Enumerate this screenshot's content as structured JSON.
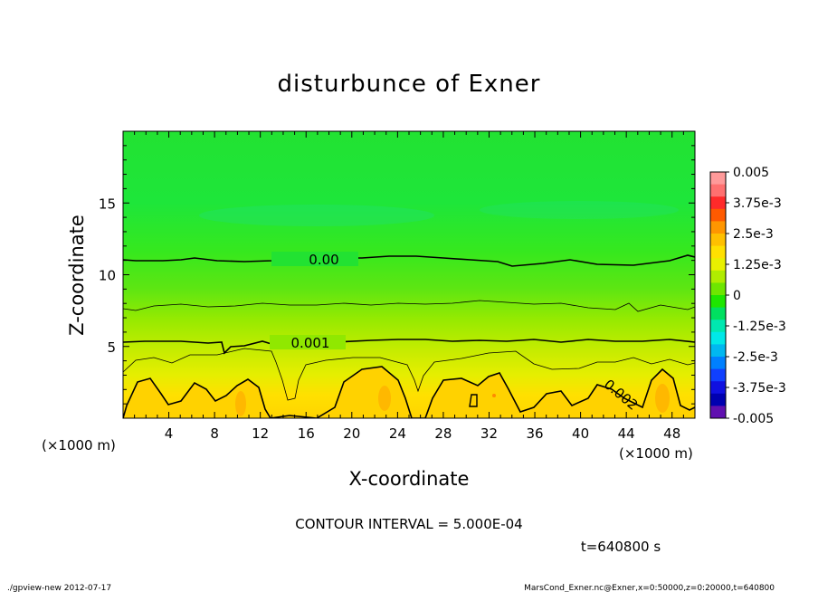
{
  "chart_data": {
    "type": "heatmap",
    "title": "disturbunce of Exner",
    "xlabel": "X-coordinate",
    "ylabel": "Z-coordinate",
    "x_unit_left": "(×1000 m)",
    "x_unit_right": "(×1000 m)",
    "xlim": [
      0,
      50
    ],
    "ylim": [
      0,
      20
    ],
    "x_ticks": [
      4,
      8,
      12,
      16,
      20,
      24,
      28,
      32,
      36,
      40,
      44,
      48
    ],
    "x_tick_labels": [
      "4",
      "8",
      "12",
      "16",
      "20",
      "24",
      "28",
      "32",
      "36",
      "40",
      "44",
      "48"
    ],
    "y_ticks": [
      5,
      10,
      15
    ],
    "y_tick_labels": [
      "5",
      "10",
      "15"
    ],
    "contour_labels": [
      {
        "text": "0.00",
        "x": 17.2,
        "z": 11.1
      },
      {
        "text": "0.001",
        "x": 16.5,
        "z": 5.2
      },
      {
        "text": "0.002",
        "x": 43.3,
        "z": 1.8
      }
    ],
    "colorbar": {
      "labels": [
        "0.005",
        "3.75e-3",
        "2.5e-3",
        "1.25e-3",
        "0",
        "-1.25e-3",
        "-2.5e-3",
        "-3.75e-3",
        "-0.005"
      ],
      "colors": [
        "#ff9a9a",
        "#ff7070",
        "#ff2a2a",
        "#ff5a00",
        "#ff9600",
        "#ffc000",
        "#ffe000",
        "#e8f000",
        "#b0ec00",
        "#6ee600",
        "#1ee600",
        "#00e060",
        "#00e8b0",
        "#00e8e8",
        "#00b8f0",
        "#0080ff",
        "#1040ff",
        "#1010e0",
        "#0000b0",
        "#6010b0"
      ]
    },
    "contour_interval_text": "CONTOUR INTERVAL = 5.000E-04",
    "time_text": "t=640800 s",
    "footer_left": "./gpview-new   2012-07-17",
    "footer_right": "MarsCond_Exner.nc@Exner,x=0:50000,z=0:20000,t=640800"
  }
}
